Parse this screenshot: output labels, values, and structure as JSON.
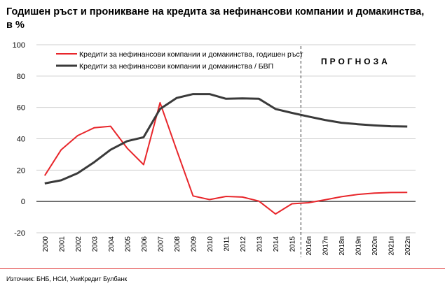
{
  "title": "Годишен ръст и проникване на кредита за нефинансови компании и домакинства, в %",
  "source": "Източник: БНБ, НСИ, УниКредит Булбанк",
  "forecast_label": "ПРОГНОЗА",
  "chart_data": {
    "type": "line",
    "categories": [
      "2000",
      "2001",
      "2002",
      "2003",
      "2004",
      "2005",
      "2006",
      "2007",
      "2008",
      "2009",
      "2010",
      "2011",
      "2012",
      "2013",
      "2014",
      "2015",
      "2016п",
      "2017п",
      "2018п",
      "2019п",
      "2020п",
      "2021п",
      "2022п"
    ],
    "ylim": [
      -20,
      100
    ],
    "yticks": [
      -20,
      0,
      20,
      40,
      60,
      80,
      100
    ],
    "grid": true,
    "legend_position": "top-left",
    "forecast_start": "2016п",
    "series": [
      {
        "name": "Кредити за нефинансови компании и домакинства, годишен ръст",
        "color": "#e8262b",
        "values": [
          16.5,
          33,
          42,
          47,
          48,
          34,
          23.5,
          63,
          33,
          3.5,
          1.2,
          3.2,
          2.8,
          0.2,
          -8,
          -1.5,
          -0.8,
          1.0,
          3.0,
          4.5,
          5.3,
          5.7,
          5.8
        ]
      },
      {
        "name": "Кредити за нефинансови компании и домакинства / БВП",
        "color": "#3a3a3a",
        "values": [
          11.5,
          13.5,
          18,
          25,
          33,
          38.5,
          41,
          59,
          66,
          68.5,
          68.5,
          65.5,
          65.8,
          65.5,
          59,
          56.5,
          54.2,
          52,
          50.2,
          49.3,
          48.5,
          48,
          47.8
        ]
      }
    ]
  }
}
